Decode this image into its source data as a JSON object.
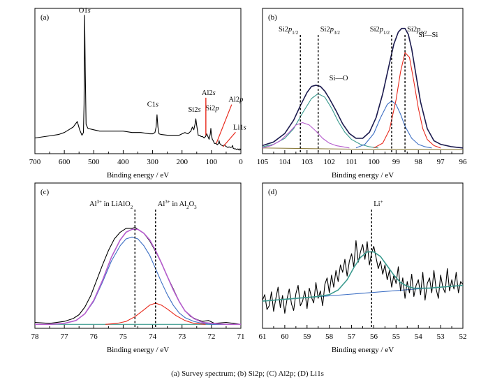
{
  "caption": "(a) Survey spectrum; (b) Si2p; (C) Al2p; (D) Li1s",
  "chart_data": [
    {
      "panel": "(a)",
      "type": "line",
      "xlabel": "Binding energy / eV",
      "ylabel": "",
      "xlim": [
        700,
        0
      ],
      "x_reversed": true,
      "xticks": [
        700,
        600,
        500,
        400,
        300,
        200,
        100,
        0
      ],
      "y_ticks_shown": false,
      "grid": false,
      "peaks": [
        {
          "label": "O1s",
          "x": 531,
          "y": 1.0
        },
        {
          "label": "C1s",
          "x": 285,
          "y": 0.27
        },
        {
          "label": "Si2s",
          "x": 153,
          "y": 0.24
        },
        {
          "label": "Al2s",
          "x": 119,
          "y": 0.19
        },
        {
          "label": "Si2p",
          "x": 102,
          "y": 0.17
        },
        {
          "label": "Al2p",
          "x": 74,
          "y": 0.14
        },
        {
          "label": "Li1s",
          "x": 56,
          "y": 0.06
        }
      ],
      "series": [
        {
          "color": "#000000",
          "x": [
            700,
            650,
            620,
            600,
            585,
            570,
            563,
            556,
            548,
            540,
            535,
            533,
            531,
            529,
            526,
            520,
            500,
            480,
            450,
            420,
            400,
            370,
            340,
            310,
            300,
            292,
            288,
            285,
            282,
            278,
            270,
            250,
            230,
            210,
            200,
            190,
            180,
            170,
            165,
            160,
            156,
            153,
            150,
            145,
            140,
            135,
            130,
            125,
            120,
            116,
            112,
            108,
            104,
            102,
            100,
            97,
            94,
            90,
            85,
            80,
            76,
            74,
            72,
            68,
            64,
            60,
            56,
            52,
            48,
            44,
            40,
            35,
            30,
            28,
            26,
            22,
            18,
            14,
            10,
            6,
            3,
            0
          ],
          "y": [
            0.1,
            0.115,
            0.125,
            0.14,
            0.16,
            0.18,
            0.2,
            0.22,
            0.16,
            0.12,
            0.14,
            0.35,
            1.0,
            0.6,
            0.2,
            0.17,
            0.16,
            0.15,
            0.15,
            0.15,
            0.15,
            0.14,
            0.14,
            0.13,
            0.13,
            0.14,
            0.18,
            0.27,
            0.18,
            0.13,
            0.125,
            0.12,
            0.12,
            0.12,
            0.13,
            0.14,
            0.13,
            0.15,
            0.18,
            0.16,
            0.2,
            0.24,
            0.19,
            0.12,
            0.12,
            0.11,
            0.11,
            0.1,
            0.11,
            0.13,
            0.11,
            0.09,
            0.13,
            0.17,
            0.12,
            0.09,
            0.08,
            0.06,
            0.06,
            0.05,
            0.06,
            0.08,
            0.06,
            0.05,
            0.045,
            0.04,
            0.05,
            0.04,
            0.035,
            0.03,
            0.035,
            0.03,
            0.035,
            0.045,
            0.025,
            0.02,
            0.02,
            0.015,
            0.02,
            0.01,
            0.02,
            0.01
          ]
        }
      ],
      "annotation_lines": [
        {
          "x": 119,
          "color": "#e8291c"
        },
        {
          "label": "Li1s",
          "color": "#e8291c"
        },
        {
          "label": "Al2p",
          "color": "#e8291c"
        }
      ]
    },
    {
      "panel": "(b)",
      "type": "line",
      "xlabel": "Binding energy / eV",
      "ylabel": "",
      "xlim": [
        105,
        96
      ],
      "x_reversed": true,
      "xticks": [
        105,
        104,
        103,
        102,
        101,
        100,
        99,
        98,
        97,
        96
      ],
      "grid": false,
      "vlines": [
        {
          "x": 103.3,
          "label_main": "Si2p",
          "label_sub": "1/2"
        },
        {
          "x": 102.5,
          "label_main": "Si2p",
          "label_sub": "3/2"
        },
        {
          "x": 99.2,
          "label_main": "Si2p",
          "label_sub": "1/2"
        },
        {
          "x": 98.6,
          "label_main": "Si2p",
          "label_sub": "3/2"
        }
      ],
      "annotations": [
        {
          "text": "Si—O",
          "x": 102.0,
          "y": 0.56
        },
        {
          "text": "Si—Si",
          "x": 98.0,
          "y": 0.92
        }
      ],
      "series": [
        {
          "role": "fit-envelope",
          "color": "#1b1a4e",
          "x": [
            105,
            104.5,
            104,
            103.6,
            103.3,
            103,
            102.8,
            102.6,
            102.4,
            102.2,
            102,
            101.7,
            101.4,
            101.1,
            100.8,
            100.5,
            100.2,
            99.9,
            99.6,
            99.3,
            99.1,
            98.9,
            98.75,
            98.6,
            98.45,
            98.3,
            98.1,
            97.9,
            97.6,
            97.3,
            97,
            96.5,
            96
          ],
          "y": [
            0.02,
            0.05,
            0.12,
            0.23,
            0.35,
            0.46,
            0.51,
            0.52,
            0.51,
            0.47,
            0.41,
            0.31,
            0.2,
            0.12,
            0.08,
            0.08,
            0.13,
            0.25,
            0.45,
            0.7,
            0.86,
            0.96,
            0.99,
            0.99,
            0.94,
            0.82,
            0.6,
            0.38,
            0.16,
            0.06,
            0.03,
            0.01,
            0.0
          ]
        },
        {
          "role": "component-102.4",
          "color": "#3a9a8e",
          "x": [
            105,
            104.5,
            104,
            103.6,
            103.2,
            102.8,
            102.5,
            102.2,
            101.9,
            101.6,
            101.3,
            101,
            100.6,
            100.2,
            99.8
          ],
          "y": [
            0.01,
            0.03,
            0.08,
            0.16,
            0.29,
            0.41,
            0.45,
            0.42,
            0.33,
            0.22,
            0.13,
            0.07,
            0.03,
            0.01,
            0.0
          ]
        },
        {
          "role": "component-103.2",
          "color": "#b55ccd",
          "x": [
            105,
            104.6,
            104.2,
            103.8,
            103.5,
            103.2,
            102.9,
            102.6,
            102.3,
            102,
            101.7,
            101.4,
            101.1
          ],
          "y": [
            0.0,
            0.02,
            0.06,
            0.13,
            0.19,
            0.21,
            0.19,
            0.14,
            0.08,
            0.04,
            0.02,
            0.01,
            0.0
          ]
        },
        {
          "role": "component-99.2",
          "color": "#3d6fc4",
          "x": [
            100.8,
            100.4,
            100,
            99.7,
            99.4,
            99.2,
            99.0,
            98.8,
            98.6,
            98.3,
            98.0,
            97.7,
            97.4
          ],
          "y": [
            0.0,
            0.03,
            0.12,
            0.25,
            0.36,
            0.39,
            0.36,
            0.28,
            0.18,
            0.08,
            0.03,
            0.01,
            0.0
          ]
        },
        {
          "role": "component-98.6",
          "color": "#e8291c",
          "x": [
            100.0,
            99.6,
            99.3,
            99.0,
            98.8,
            98.6,
            98.4,
            98.2,
            98.0,
            97.8,
            97.6,
            97.3,
            97.0
          ],
          "y": [
            0.0,
            0.04,
            0.15,
            0.4,
            0.63,
            0.79,
            0.75,
            0.55,
            0.33,
            0.16,
            0.07,
            0.02,
            0.0
          ]
        },
        {
          "role": "background",
          "color": "#8a7a3a",
          "x": [
            105,
            103,
            101,
            99,
            97,
            96
          ],
          "y": [
            0.0,
            -0.005,
            -0.01,
            -0.012,
            -0.014,
            -0.015
          ]
        }
      ]
    },
    {
      "panel": "(c)",
      "type": "line",
      "xlabel": "Binding energy / eV",
      "ylabel": "",
      "xlim": [
        78,
        71
      ],
      "x_reversed": true,
      "xticks": [
        78,
        77,
        76,
        75,
        74,
        73,
        72,
        71
      ],
      "grid": false,
      "vlines": [
        {
          "x": 74.6,
          "label_main": "Al",
          "label_sup": "3+",
          "label_rest": " in LiAlO",
          "label_sub": "2"
        },
        {
          "x": 73.9,
          "label_main": "Al",
          "label_sup": "3+",
          "label_rest": " in Al",
          "label_sub": "2",
          "label_rest2": "O",
          "label_sub2": "3"
        }
      ],
      "series": [
        {
          "role": "raw",
          "color": "#000000",
          "x": [
            78,
            77.5,
            77,
            76.7,
            76.5,
            76.3,
            76.1,
            75.9,
            75.7,
            75.5,
            75.3,
            75.1,
            74.9,
            74.7,
            74.6,
            74.5,
            74.3,
            74.1,
            73.9,
            73.7,
            73.5,
            73.3,
            73.1,
            72.9,
            72.7,
            72.5,
            72.3,
            72.1,
            71.9,
            71.5,
            71
          ],
          "y": [
            0.02,
            0.01,
            0.03,
            0.06,
            0.1,
            0.18,
            0.3,
            0.46,
            0.62,
            0.77,
            0.89,
            0.96,
            1.0,
            1.0,
            1.01,
            0.99,
            0.95,
            0.87,
            0.76,
            0.64,
            0.5,
            0.37,
            0.24,
            0.14,
            0.08,
            0.05,
            0.03,
            0.04,
            0.01,
            0.02,
            0.0
          ]
        },
        {
          "role": "fit-envelope",
          "color": "#b55ccd",
          "x": [
            78,
            77.5,
            77,
            76.6,
            76.3,
            76.0,
            75.7,
            75.4,
            75.1,
            74.9,
            74.7,
            74.5,
            74.3,
            74.1,
            73.9,
            73.7,
            73.5,
            73.3,
            73.1,
            72.9,
            72.6,
            72.3,
            72.0,
            71.5,
            71
          ],
          "y": [
            0.0,
            0.0,
            0.01,
            0.04,
            0.11,
            0.25,
            0.46,
            0.7,
            0.88,
            0.96,
            0.99,
            0.99,
            0.95,
            0.88,
            0.77,
            0.64,
            0.5,
            0.36,
            0.24,
            0.14,
            0.06,
            0.02,
            0.01,
            0.0,
            0.0
          ]
        },
        {
          "role": "component-74.6",
          "color": "#3d6fc4",
          "x": [
            78,
            77.5,
            77,
            76.6,
            76.3,
            76.0,
            75.7,
            75.4,
            75.1,
            74.9,
            74.7,
            74.5,
            74.3,
            74.1,
            73.9,
            73.7,
            73.5,
            73.3,
            73.1,
            72.9,
            72.6,
            72.3,
            72.0,
            71.5
          ],
          "y": [
            0.0,
            0.0,
            0.01,
            0.04,
            0.11,
            0.24,
            0.44,
            0.66,
            0.82,
            0.89,
            0.91,
            0.89,
            0.82,
            0.72,
            0.58,
            0.44,
            0.31,
            0.2,
            0.12,
            0.07,
            0.03,
            0.01,
            0.0,
            0.0
          ]
        },
        {
          "role": "component-73.9",
          "color": "#e8291c",
          "x": [
            75.6,
            75.2,
            74.9,
            74.6,
            74.3,
            74.1,
            73.9,
            73.7,
            73.5,
            73.2,
            72.9,
            72.6,
            72.2
          ],
          "y": [
            0.0,
            0.01,
            0.03,
            0.08,
            0.15,
            0.2,
            0.22,
            0.2,
            0.16,
            0.09,
            0.04,
            0.01,
            0.0
          ]
        },
        {
          "role": "background",
          "color": "#3a9a8e",
          "x": [
            78,
            71
          ],
          "y": [
            0.0,
            0.0
          ]
        }
      ]
    },
    {
      "panel": "(d)",
      "type": "line",
      "xlabel": "Binding energy / eV",
      "ylabel": "",
      "xlim": [
        61,
        52
      ],
      "x_reversed": true,
      "xticks": [
        61,
        60,
        59,
        58,
        57,
        56,
        55,
        54,
        53,
        52
      ],
      "grid": false,
      "vlines": [
        {
          "x": 56.1,
          "label_main": "Li",
          "label_sup": "+"
        }
      ],
      "series": [
        {
          "role": "raw",
          "color": "#000000",
          "x": [
            61.0,
            60.9,
            60.8,
            60.7,
            60.6,
            60.5,
            60.4,
            60.3,
            60.2,
            60.1,
            60.0,
            59.9,
            59.8,
            59.7,
            59.6,
            59.5,
            59.4,
            59.3,
            59.2,
            59.1,
            59.0,
            58.9,
            58.8,
            58.7,
            58.6,
            58.5,
            58.4,
            58.3,
            58.2,
            58.1,
            58.0,
            57.9,
            57.8,
            57.7,
            57.6,
            57.5,
            57.4,
            57.3,
            57.2,
            57.1,
            57.0,
            56.9,
            56.8,
            56.7,
            56.6,
            56.5,
            56.4,
            56.3,
            56.2,
            56.1,
            56.0,
            55.9,
            55.8,
            55.7,
            55.6,
            55.5,
            55.4,
            55.3,
            55.2,
            55.1,
            55.0,
            54.9,
            54.8,
            54.7,
            54.6,
            54.5,
            54.4,
            54.3,
            54.2,
            54.1,
            54.0,
            53.9,
            53.8,
            53.7,
            53.6,
            53.5,
            53.4,
            53.3,
            53.2,
            53.1,
            53.0,
            52.9,
            52.8,
            52.7,
            52.6,
            52.5,
            52.4,
            52.3,
            52.2,
            52.1,
            52.0
          ],
          "y": [
            0.28,
            0.34,
            0.18,
            0.22,
            0.37,
            0.16,
            0.3,
            0.42,
            0.2,
            0.33,
            0.14,
            0.29,
            0.4,
            0.24,
            0.17,
            0.35,
            0.44,
            0.22,
            0.27,
            0.38,
            0.19,
            0.41,
            0.31,
            0.25,
            0.47,
            0.3,
            0.38,
            0.22,
            0.45,
            0.52,
            0.36,
            0.55,
            0.42,
            0.6,
            0.48,
            0.66,
            0.58,
            0.72,
            0.54,
            0.7,
            0.78,
            0.64,
            0.92,
            0.69,
            0.8,
            0.88,
            0.72,
            0.91,
            0.66,
            0.79,
            0.86,
            0.74,
            0.62,
            0.7,
            0.56,
            0.66,
            0.5,
            0.6,
            0.42,
            0.55,
            0.46,
            0.64,
            0.38,
            0.52,
            0.3,
            0.48,
            0.36,
            0.56,
            0.32,
            0.44,
            0.5,
            0.34,
            0.58,
            0.28,
            0.46,
            0.52,
            0.36,
            0.6,
            0.4,
            0.3,
            0.55,
            0.42,
            0.36,
            0.62,
            0.38,
            0.5,
            0.4,
            0.58,
            0.36,
            0.48,
            0.45
          ]
        },
        {
          "role": "fit-envelope",
          "color": "#3a9a8e",
          "x": [
            61,
            60,
            59.5,
            59,
            58.5,
            58,
            57.6,
            57.2,
            56.9,
            56.6,
            56.3,
            56.0,
            55.7,
            55.4,
            55.1,
            54.8,
            54.5,
            54.2,
            54.0,
            53.5,
            53,
            52.5,
            52
          ],
          "y": [
            0.27,
            0.29,
            0.3,
            0.31,
            0.32,
            0.34,
            0.39,
            0.5,
            0.63,
            0.74,
            0.8,
            0.8,
            0.75,
            0.65,
            0.55,
            0.47,
            0.43,
            0.41,
            0.41,
            0.41,
            0.42,
            0.43,
            0.44
          ]
        },
        {
          "role": "background",
          "color": "#3d6fc4",
          "x": [
            61,
            52
          ],
          "y": [
            0.27,
            0.44
          ]
        }
      ]
    }
  ]
}
